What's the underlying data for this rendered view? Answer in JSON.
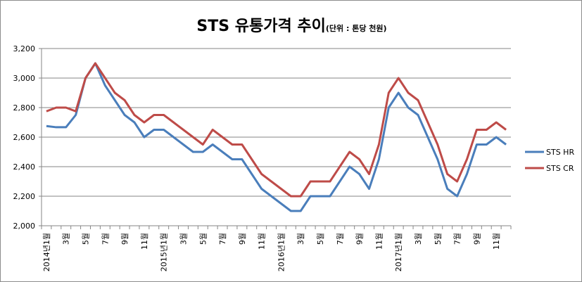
{
  "chart_data": {
    "type": "line",
    "title": "STS 유통가격 추이",
    "subtitle": "(단위 : 톤당 천원)",
    "xlabel": "",
    "ylabel": "",
    "ylim": [
      2000,
      3200
    ],
    "yticks": [
      "2,000",
      "2,200",
      "2,400",
      "2,600",
      "2,800",
      "3,000",
      "3,200"
    ],
    "grid": true,
    "legend_position": "right",
    "x_labels": [
      "2014년1월",
      "",
      "3월",
      "",
      "5월",
      "",
      "7월",
      "",
      "9월",
      "",
      "11월",
      "",
      "2015년1월",
      "",
      "3월",
      "",
      "5월",
      "",
      "7월",
      "",
      "9월",
      "",
      "11월",
      "",
      "2016년1월",
      "",
      "3월",
      "",
      "5월",
      "",
      "7월",
      "",
      "9월",
      "",
      "11월",
      "",
      "2017년1월",
      "",
      "3월",
      "",
      "5월",
      "",
      "7월",
      "",
      "9월",
      "",
      "11월",
      ""
    ],
    "series": [
      {
        "name": "STS HR",
        "color": "#4a7ebb",
        "values": [
          2675,
          2667,
          2667,
          2750,
          3000,
          3100,
          2950,
          2850,
          2750,
          2700,
          2600,
          2650,
          2650,
          2600,
          2550,
          2500,
          2500,
          2550,
          2500,
          2450,
          2450,
          2350,
          2250,
          2200,
          2150,
          2100,
          2100,
          2200,
          2200,
          2200,
          2300,
          2400,
          2350,
          2250,
          2450,
          2800,
          2900,
          2800,
          2750,
          2600,
          2450,
          2250,
          2200,
          2350,
          2550,
          2550,
          2600,
          2550
        ]
      },
      {
        "name": "STS CR",
        "color": "#be4b48",
        "values": [
          2775,
          2800,
          2800,
          2775,
          3000,
          3100,
          3000,
          2900,
          2850,
          2750,
          2700,
          2750,
          2750,
          2700,
          2650,
          2600,
          2550,
          2650,
          2600,
          2550,
          2550,
          2450,
          2350,
          2300,
          2250,
          2200,
          2200,
          2300,
          2300,
          2300,
          2400,
          2500,
          2450,
          2350,
          2550,
          2900,
          3000,
          2900,
          2850,
          2700,
          2550,
          2350,
          2300,
          2450,
          2650,
          2650,
          2700,
          2650
        ]
      }
    ]
  }
}
